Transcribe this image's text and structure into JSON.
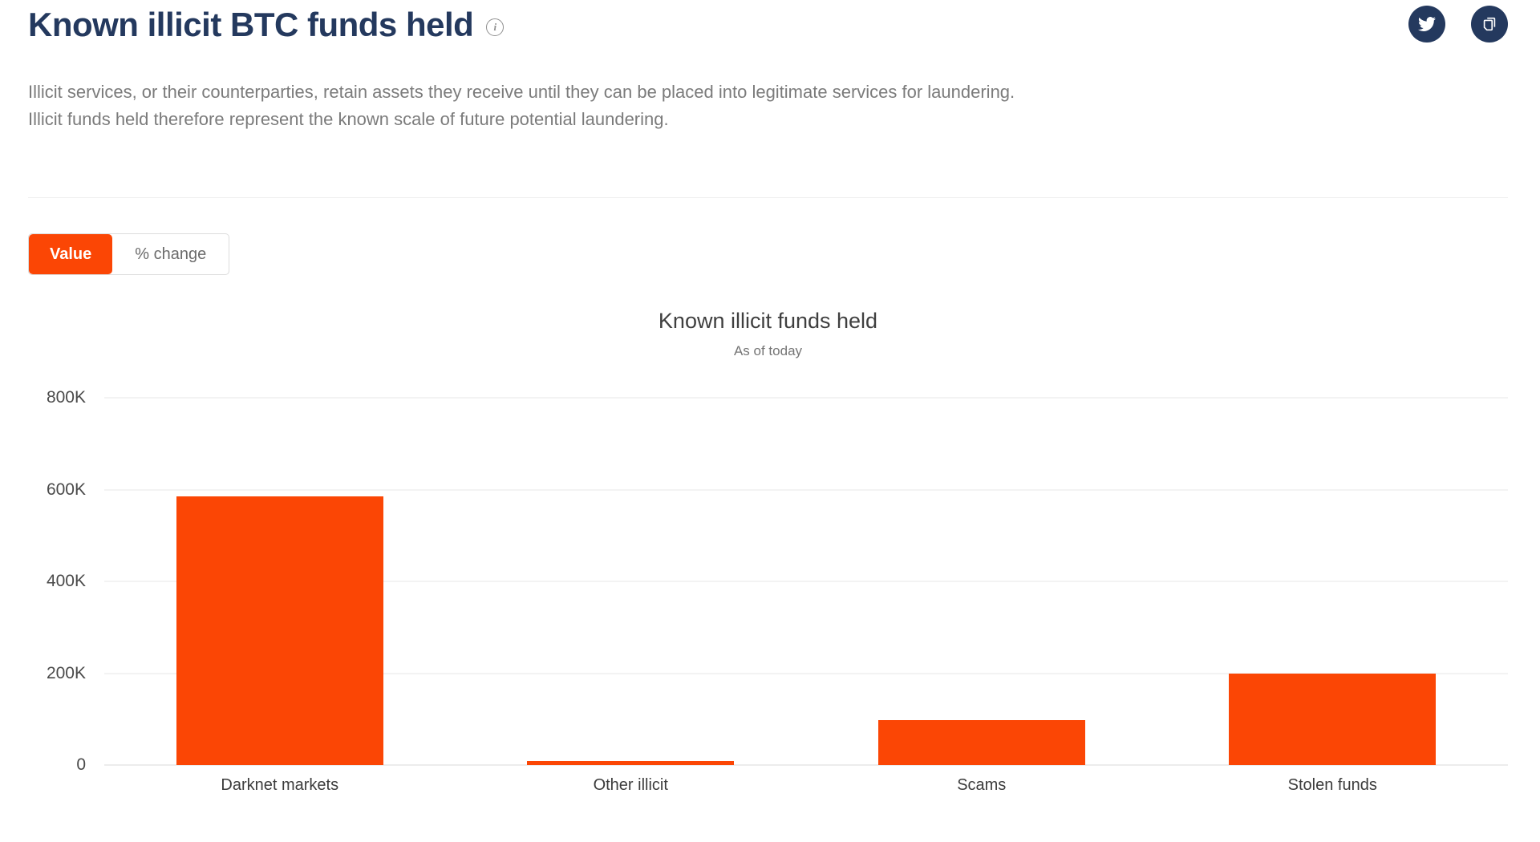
{
  "page": {
    "title": "Known illicit BTC funds held",
    "description_line1": "Illicit services, or their counterparties, retain assets they receive until they can be placed into legitimate services for laundering.",
    "description_line2": "Illicit funds held therefore represent the known scale of future potential laundering."
  },
  "icons": {
    "info": "circled-i",
    "twitter": "twitter-bird",
    "copy": "copy-pages"
  },
  "colors": {
    "accent_orange": "#FB4605",
    "navy": "#24395E"
  },
  "toggle": {
    "value_label": "Value",
    "percent_label": "% change",
    "selected": "Value"
  },
  "chart_data": {
    "type": "bar",
    "title": "Known illicit funds held",
    "subtitle": "As of today",
    "categories": [
      "Darknet markets",
      "Other illicit",
      "Scams",
      "Stolen funds"
    ],
    "values": [
      585000,
      8000,
      97000,
      200000
    ],
    "bar_color": "#FB4605",
    "xlabel": "",
    "ylabel": "",
    "ylim": [
      0,
      800000
    ],
    "yticks": [
      0,
      200000,
      400000,
      600000,
      800000
    ],
    "ytick_labels": [
      "0",
      "200K",
      "400K",
      "600K",
      "800K"
    ],
    "grid": true,
    "legend": false
  }
}
